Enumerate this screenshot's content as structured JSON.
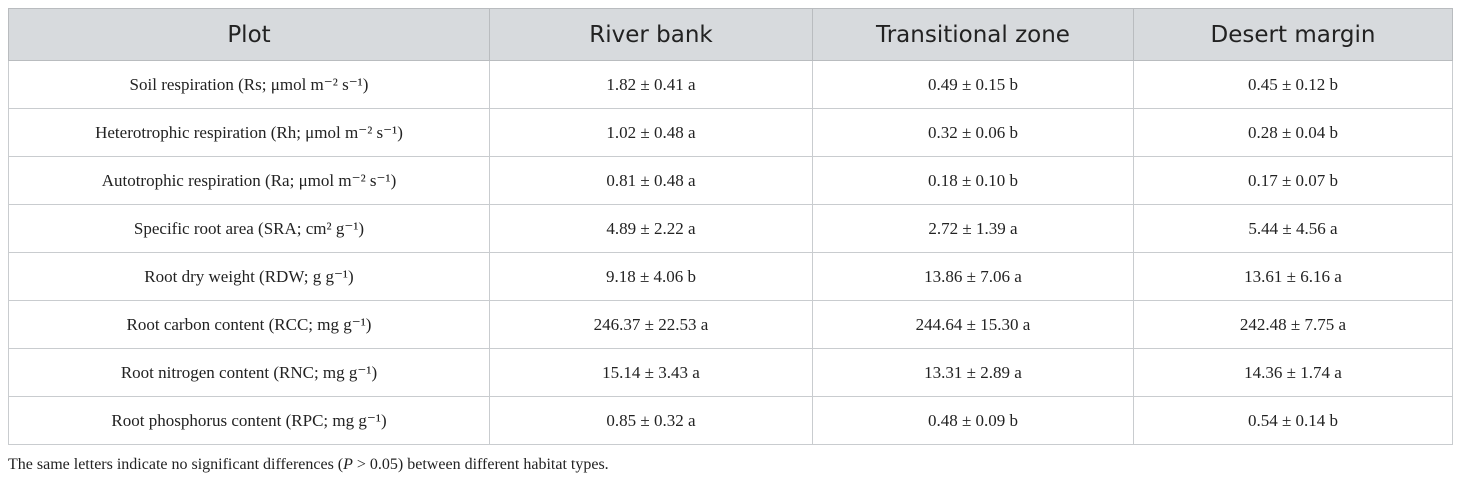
{
  "table": {
    "header": [
      "Plot",
      "River bank",
      "Transitional zone",
      "Desert margin"
    ],
    "rows": [
      [
        "Soil respiration (Rs; μmol m⁻² s⁻¹)",
        "1.82 ± 0.41 a",
        "0.49 ± 0.15 b",
        "0.45 ± 0.12 b"
      ],
      [
        "Heterotrophic respiration (Rh; μmol m⁻² s⁻¹)",
        "1.02 ± 0.48 a",
        "0.32 ± 0.06 b",
        "0.28 ± 0.04 b"
      ],
      [
        "Autotrophic respiration (Ra; μmol m⁻² s⁻¹)",
        "0.81 ± 0.48 a",
        "0.18 ± 0.10 b",
        "0.17 ± 0.07 b"
      ],
      [
        "Specific root area (SRA; cm² g⁻¹)",
        "4.89 ± 2.22 a",
        "2.72 ± 1.39 a",
        "5.44 ± 4.56 a"
      ],
      [
        "Root dry weight (RDW; g g⁻¹)",
        "9.18 ± 4.06 b",
        "13.86 ± 7.06 a",
        "13.61 ± 6.16 a"
      ],
      [
        "Root carbon content (RCC; mg g⁻¹)",
        "246.37 ± 22.53 a",
        "244.64 ± 15.30 a",
        "242.48 ± 7.75 a"
      ],
      [
        "Root nitrogen content (RNC; mg g⁻¹)",
        "15.14 ± 3.43 a",
        "13.31 ± 2.89 a",
        "14.36 ± 1.74 a"
      ],
      [
        "Root phosphorus content (RPC; mg g⁻¹)",
        "0.85 ± 0.32 a",
        "0.48 ± 0.09 b",
        "0.54 ± 0.14 b"
      ]
    ]
  },
  "footnote": [
    "The same letters indicate no significant differences (",
    "P",
    " > 0.05) between different habitat types."
  ]
}
